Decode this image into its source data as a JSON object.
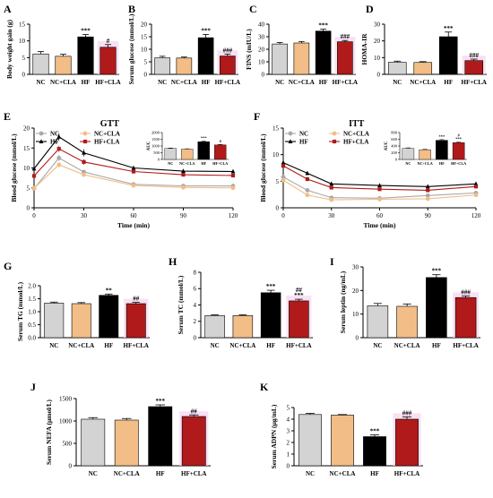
{
  "figure": {
    "categories": [
      "NC",
      "NC+CLA",
      "HF",
      "HF+CLA"
    ],
    "colors": {
      "NC": "#d3d3d3",
      "NC+CLA": "#f2bd86",
      "HF": "#000000",
      "HF+CLA": "#b01a1a",
      "highlight": "#f8d3f0"
    }
  },
  "chart_data": [
    {
      "panel": "A",
      "type": "bar",
      "ylabel": "Body weight gain (g)",
      "ylim": [
        0,
        15
      ],
      "yticks": [
        0,
        5,
        10,
        15
      ],
      "categories": [
        "NC",
        "NC+CLA",
        "HF",
        "HF+CLA"
      ],
      "values": [
        6.1,
        5.4,
        11.2,
        8.1
      ],
      "errors": [
        0.7,
        0.6,
        0.7,
        0.8
      ],
      "annotations": [
        "",
        "",
        "***",
        "#"
      ]
    },
    {
      "panel": "B",
      "type": "bar",
      "ylabel": "Serum glucose (mmol/L)",
      "ylim": [
        0,
        20
      ],
      "yticks": [
        0,
        5,
        10,
        15,
        20
      ],
      "categories": [
        "NC",
        "NC+CLA",
        "HF",
        "HF+CLA"
      ],
      "values": [
        6.6,
        6.5,
        14.6,
        7.3
      ],
      "errors": [
        0.6,
        0.4,
        1.3,
        0.8
      ],
      "annotations": [
        "",
        "",
        "***",
        "###"
      ]
    },
    {
      "panel": "C",
      "type": "bar",
      "ylabel": "FINS (mIU/L)",
      "ylim": [
        0,
        40
      ],
      "yticks": [
        0,
        10,
        20,
        30,
        40
      ],
      "categories": [
        "NC",
        "NC+CLA",
        "HF",
        "HF+CLA"
      ],
      "values": [
        24.2,
        25.0,
        34.5,
        26.0
      ],
      "errors": [
        1.2,
        1.2,
        1.5,
        1.0
      ],
      "annotations": [
        "",
        "",
        "***",
        "###"
      ]
    },
    {
      "panel": "D",
      "type": "bar",
      "ylabel": "HOMA-IR",
      "ylim": [
        0,
        30
      ],
      "yticks": [
        0,
        10,
        20,
        30
      ],
      "categories": [
        "NC",
        "NC+CLA",
        "HF",
        "HF+CLA"
      ],
      "values": [
        7.2,
        7.1,
        22.5,
        8.2
      ],
      "errors": [
        0.7,
        0.5,
        2.8,
        0.9
      ],
      "annotations": [
        "",
        "",
        "***",
        "###"
      ]
    },
    {
      "panel": "E",
      "type": "line",
      "title": "GTT",
      "xlabel": "Time (min)",
      "ylabel": "Blood glucose (mmol/L)",
      "xlim": [
        0,
        120
      ],
      "ylim": [
        0,
        20
      ],
      "xticks": [
        0,
        30,
        60,
        90,
        120
      ],
      "yticks": [
        0,
        5,
        10,
        15,
        20
      ],
      "legend": "top-left",
      "x": [
        0,
        15,
        30,
        60,
        90,
        120
      ],
      "series": [
        {
          "name": "NC",
          "values": [
            4.8,
            12.5,
            9.0,
            5.9,
            5.5,
            5.5
          ],
          "errors": [
            0.3,
            0.8,
            0.5,
            0.3,
            0.3,
            0.3
          ]
        },
        {
          "name": "NC+CLA",
          "values": [
            4.9,
            10.8,
            8.3,
            5.6,
            5.1,
            5.0
          ],
          "errors": [
            0.3,
            0.7,
            0.5,
            0.3,
            0.3,
            0.3
          ]
        },
        {
          "name": "HF",
          "values": [
            9.8,
            17.8,
            13.8,
            10.0,
            9.2,
            9.1
          ],
          "errors": [
            0.6,
            0.9,
            0.9,
            0.5,
            0.5,
            0.5
          ]
        },
        {
          "name": "HF+CLA",
          "values": [
            8.0,
            14.8,
            11.5,
            9.1,
            8.3,
            8.1
          ],
          "errors": [
            0.5,
            0.8,
            0.7,
            0.5,
            0.4,
            0.4
          ]
        }
      ],
      "inset": {
        "type": "bar",
        "ylabel": "AUC",
        "ylim": [
          0,
          2000
        ],
        "yticks": [
          0,
          500,
          1000,
          1500,
          2000
        ],
        "categories": [
          "NC",
          "NC+CLA",
          "HF",
          "HF+CLA"
        ],
        "values": [
          820,
          770,
          1320,
          1080
        ],
        "errors": [
          30,
          25,
          50,
          40
        ],
        "annotations": [
          "",
          "",
          "***",
          "#"
        ]
      }
    },
    {
      "panel": "F",
      "type": "line",
      "title": "ITT",
      "xlabel": "Time (min)",
      "ylabel": "Blood glucose (mmol/L)",
      "xlim": [
        0,
        120
      ],
      "ylim": [
        0,
        15
      ],
      "xticks": [
        0,
        30,
        60,
        90,
        120
      ],
      "yticks": [
        0,
        5,
        10,
        15
      ],
      "legend": "top-left",
      "x": [
        0,
        15,
        30,
        60,
        90,
        120
      ],
      "series": [
        {
          "name": "NC",
          "values": [
            5.8,
            3.3,
            1.9,
            1.8,
            2.3,
            2.8
          ],
          "errors": [
            0.3,
            0.3,
            0.2,
            0.2,
            0.2,
            0.2
          ]
        },
        {
          "name": "NC+CLA",
          "values": [
            5.2,
            2.4,
            1.5,
            1.6,
            1.7,
            2.4
          ],
          "errors": [
            0.3,
            0.3,
            0.2,
            0.2,
            0.2,
            0.2
          ]
        },
        {
          "name": "HF",
          "values": [
            8.5,
            6.5,
            4.5,
            4.2,
            4.0,
            4.5
          ],
          "errors": [
            0.4,
            0.4,
            0.3,
            0.3,
            0.3,
            0.3
          ]
        },
        {
          "name": "HF+CLA",
          "values": [
            7.9,
            5.4,
            3.8,
            3.5,
            3.3,
            4.0
          ],
          "errors": [
            0.4,
            0.4,
            0.3,
            0.3,
            0.3,
            0.3
          ]
        }
      ],
      "inset": {
        "type": "bar",
        "ylabel": "AUC",
        "ylim": [
          0,
          800
        ],
        "yticks": [
          0,
          200,
          400,
          600,
          800
        ],
        "categories": [
          "NC",
          "NC+CLA",
          "HF",
          "HF+CLA"
        ],
        "values": [
          330,
          290,
          570,
          500
        ],
        "errors": [
          15,
          15,
          20,
          20
        ],
        "annotations": [
          "",
          "",
          "***",
          "#\n***"
        ]
      }
    },
    {
      "panel": "G",
      "type": "bar",
      "ylabel": "Serum TG (mmol/L)",
      "ylim": [
        0,
        2.0
      ],
      "yticks": [
        0.0,
        0.5,
        1.0,
        1.5,
        2.0
      ],
      "categories": [
        "NC",
        "NC+CLA",
        "HF",
        "HF+CLA"
      ],
      "values": [
        1.33,
        1.31,
        1.63,
        1.31
      ],
      "errors": [
        0.04,
        0.04,
        0.05,
        0.05
      ],
      "annotations": [
        "",
        "",
        "**",
        "##"
      ]
    },
    {
      "panel": "H",
      "type": "bar",
      "ylabel": "Serum TC (mmol/L)",
      "ylim": [
        0,
        8
      ],
      "yticks": [
        0,
        2,
        4,
        6,
        8
      ],
      "categories": [
        "NC",
        "NC+CLA",
        "HF",
        "HF+CLA"
      ],
      "values": [
        2.7,
        2.7,
        5.5,
        4.5
      ],
      "errors": [
        0.1,
        0.1,
        0.3,
        0.2
      ],
      "annotations": [
        "",
        "",
        "***",
        "##\n***"
      ]
    },
    {
      "panel": "I",
      "type": "bar",
      "ylabel": "Serum leptin (ng/mL)",
      "ylim": [
        0,
        30
      ],
      "yticks": [
        0,
        10,
        20,
        30
      ],
      "categories": [
        "NC",
        "NC+CLA",
        "HF",
        "HF+CLA"
      ],
      "values": [
        13.5,
        13.3,
        25.5,
        17.0
      ],
      "errors": [
        1.0,
        1.0,
        1.2,
        0.7
      ],
      "annotations": [
        "",
        "",
        "***",
        "###"
      ]
    },
    {
      "panel": "J",
      "type": "bar",
      "ylabel": "Serum NEFA (μmol/L)",
      "ylim": [
        0,
        1500
      ],
      "yticks": [
        0,
        500,
        1000,
        1500
      ],
      "categories": [
        "NC",
        "NC+CLA",
        "HF",
        "HF+CLA"
      ],
      "values": [
        1040,
        1020,
        1320,
        1100
      ],
      "errors": [
        35,
        35,
        40,
        35
      ],
      "annotations": [
        "",
        "",
        "***",
        "##"
      ]
    },
    {
      "panel": "K",
      "type": "bar",
      "ylabel": "Serum ADPN (μg/mL)",
      "ylim": [
        0,
        5
      ],
      "yticks": [
        0,
        1,
        2,
        3,
        4,
        5
      ],
      "categories": [
        "NC",
        "NC+CLA",
        "HF",
        "HF+CLA"
      ],
      "values": [
        4.4,
        4.35,
        2.5,
        4.0
      ],
      "errors": [
        0.1,
        0.05,
        0.15,
        0.2
      ],
      "annotations": [
        "",
        "",
        "***",
        "###"
      ]
    }
  ]
}
